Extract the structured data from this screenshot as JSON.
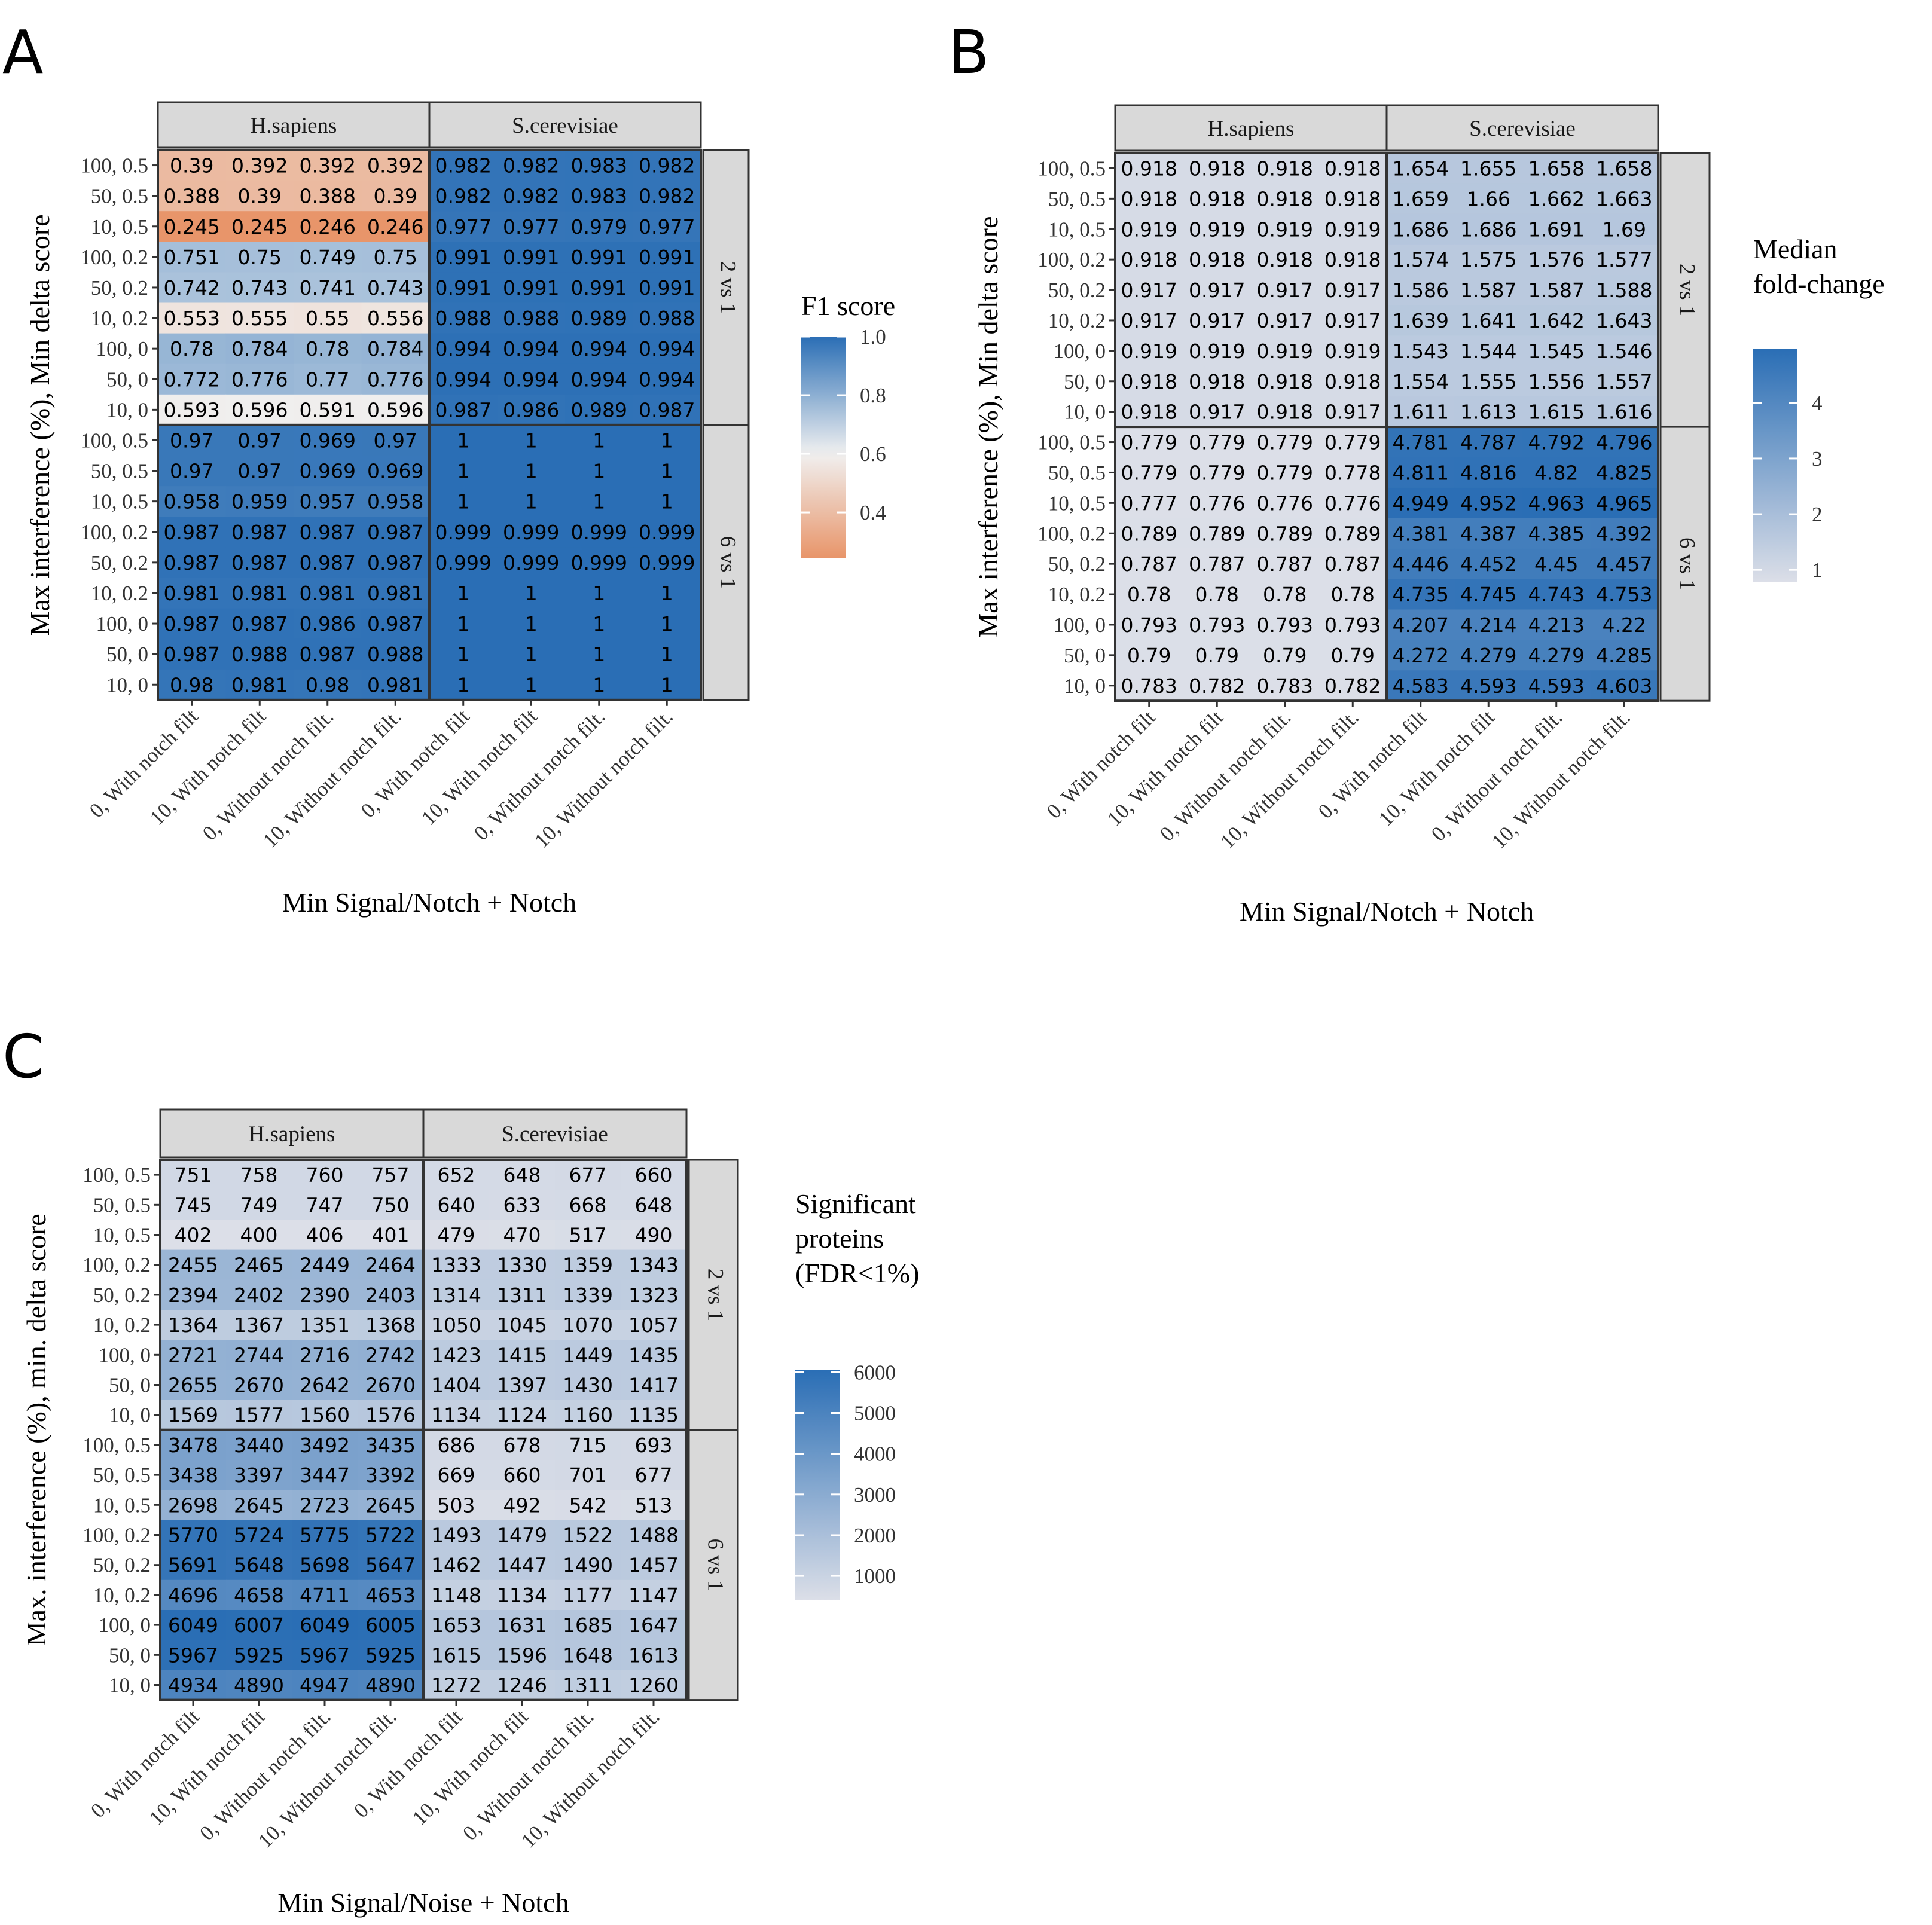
{
  "chart_data": [
    {
      "type": "heatmap",
      "panel_label": "A",
      "xlabel": "Min Signal/Notch + Notch",
      "ylabel": "Max interference (%), Min delta score",
      "columns": [
        "H.sapiens",
        "S.cerevisiae"
      ],
      "rows": [
        "2 vs 1",
        "6 vs 1"
      ],
      "x_categories": [
        "0, With notch filt",
        "10, With notch filt",
        "0, Without notch filt.",
        "10, Without notch filt."
      ],
      "y_categories": [
        "100, 0.5",
        "50, 0.5",
        "10, 0.5",
        "100, 0.2",
        "50, 0.2",
        "10, 0.2",
        "100, 0",
        "50, 0",
        "10, 0"
      ],
      "values": [
        [
          [
            [
              0.39,
              0.392,
              0.392,
              0.392
            ],
            [
              0.388,
              0.39,
              0.388,
              0.39
            ],
            [
              0.245,
              0.245,
              0.246,
              0.246
            ],
            [
              0.751,
              0.75,
              0.749,
              0.75
            ],
            [
              0.742,
              0.743,
              0.741,
              0.743
            ],
            [
              0.553,
              0.555,
              0.55,
              0.556
            ],
            [
              0.78,
              0.784,
              0.78,
              0.784
            ],
            [
              0.772,
              0.776,
              0.77,
              0.776
            ],
            [
              0.593,
              0.596,
              0.591,
              0.596
            ]
          ],
          [
            [
              0.982,
              0.982,
              0.983,
              0.982
            ],
            [
              0.982,
              0.982,
              0.983,
              0.982
            ],
            [
              0.977,
              0.977,
              0.979,
              0.977
            ],
            [
              0.991,
              0.991,
              0.991,
              0.991
            ],
            [
              0.991,
              0.991,
              0.991,
              0.991
            ],
            [
              0.988,
              0.988,
              0.989,
              0.988
            ],
            [
              0.994,
              0.994,
              0.994,
              0.994
            ],
            [
              0.994,
              0.994,
              0.994,
              0.994
            ],
            [
              0.987,
              0.986,
              0.989,
              0.987
            ]
          ]
        ],
        [
          [
            [
              0.97,
              0.97,
              0.969,
              0.97
            ],
            [
              0.97,
              0.97,
              0.969,
              0.969
            ],
            [
              0.958,
              0.959,
              0.957,
              0.958
            ],
            [
              0.987,
              0.987,
              0.987,
              0.987
            ],
            [
              0.987,
              0.987,
              0.987,
              0.987
            ],
            [
              0.981,
              0.981,
              0.981,
              0.981
            ],
            [
              0.987,
              0.987,
              0.986,
              0.987
            ],
            [
              0.987,
              0.988,
              0.987,
              0.988
            ],
            [
              0.98,
              0.981,
              0.98,
              0.981
            ]
          ],
          [
            [
              1,
              1,
              1,
              1
            ],
            [
              1,
              1,
              1,
              1
            ],
            [
              1,
              1,
              1,
              1
            ],
            [
              0.999,
              0.999,
              0.999,
              0.999
            ],
            [
              0.999,
              0.999,
              0.999,
              0.999
            ],
            [
              1,
              1,
              1,
              1
            ],
            [
              1,
              1,
              1,
              1
            ],
            [
              1,
              1,
              1,
              1
            ],
            [
              1,
              1,
              1,
              1
            ]
          ]
        ]
      ],
      "legend": {
        "title": [
          "F1 score"
        ],
        "scale": "diverging",
        "range": [
          0.245,
          1.0
        ],
        "midpoint": 0.6,
        "breaks": [
          0.4,
          0.6,
          0.8,
          1.0
        ],
        "break_labels": [
          "0.4",
          "0.6",
          "0.8",
          "1.0"
        ],
        "colors": {
          "low": "#e8956a",
          "mid": "#f0f0f0",
          "high": "#2a6eb5"
        }
      }
    },
    {
      "type": "heatmap",
      "panel_label": "B",
      "xlabel": "Min Signal/Notch + Notch",
      "ylabel": "Max interference (%), Min delta score",
      "columns": [
        "H.sapiens",
        "S.cerevisiae"
      ],
      "rows": [
        "2 vs 1",
        "6 vs 1"
      ],
      "x_categories": [
        "0, With notch filt",
        "10, With notch filt",
        "0, Without notch filt.",
        "10, Without notch filt."
      ],
      "y_categories": [
        "100, 0.5",
        "50, 0.5",
        "10, 0.5",
        "100, 0.2",
        "50, 0.2",
        "10, 0.2",
        "100, 0",
        "50, 0",
        "10, 0"
      ],
      "values": [
        [
          [
            [
              0.918,
              0.918,
              0.918,
              0.918
            ],
            [
              0.918,
              0.918,
              0.918,
              0.918
            ],
            [
              0.919,
              0.919,
              0.919,
              0.919
            ],
            [
              0.918,
              0.918,
              0.918,
              0.918
            ],
            [
              0.917,
              0.917,
              0.917,
              0.917
            ],
            [
              0.917,
              0.917,
              0.917,
              0.917
            ],
            [
              0.919,
              0.919,
              0.919,
              0.919
            ],
            [
              0.918,
              0.918,
              0.918,
              0.918
            ],
            [
              0.918,
              0.917,
              0.918,
              0.917
            ]
          ],
          [
            [
              1.654,
              1.655,
              1.658,
              1.658
            ],
            [
              1.659,
              1.66,
              1.662,
              1.663
            ],
            [
              1.686,
              1.686,
              1.691,
              1.69
            ],
            [
              1.574,
              1.575,
              1.576,
              1.577
            ],
            [
              1.586,
              1.587,
              1.587,
              1.588
            ],
            [
              1.639,
              1.641,
              1.642,
              1.643
            ],
            [
              1.543,
              1.544,
              1.545,
              1.546
            ],
            [
              1.554,
              1.555,
              1.556,
              1.557
            ],
            [
              1.611,
              1.613,
              1.615,
              1.616
            ]
          ]
        ],
        [
          [
            [
              0.779,
              0.779,
              0.779,
              0.779
            ],
            [
              0.779,
              0.779,
              0.779,
              0.778
            ],
            [
              0.777,
              0.776,
              0.776,
              0.776
            ],
            [
              0.789,
              0.789,
              0.789,
              0.789
            ],
            [
              0.787,
              0.787,
              0.787,
              0.787
            ],
            [
              0.78,
              0.78,
              0.78,
              0.78
            ],
            [
              0.793,
              0.793,
              0.793,
              0.793
            ],
            [
              0.79,
              0.79,
              0.79,
              0.79
            ],
            [
              0.783,
              0.782,
              0.783,
              0.782
            ]
          ],
          [
            [
              4.781,
              4.787,
              4.792,
              4.796
            ],
            [
              4.811,
              4.816,
              4.82,
              4.825
            ],
            [
              4.949,
              4.952,
              4.963,
              4.965
            ],
            [
              4.381,
              4.387,
              4.385,
              4.392
            ],
            [
              4.446,
              4.452,
              4.45,
              4.457
            ],
            [
              4.735,
              4.745,
              4.743,
              4.753
            ],
            [
              4.207,
              4.214,
              4.213,
              4.22
            ],
            [
              4.272,
              4.279,
              4.279,
              4.285
            ],
            [
              4.583,
              4.593,
              4.593,
              4.603
            ]
          ]
        ]
      ],
      "legend": {
        "title": [
          "Median",
          "fold-change"
        ],
        "scale": "sequential",
        "range": [
          0.776,
          4.965
        ],
        "breaks": [
          1,
          2,
          3,
          4
        ],
        "break_labels": [
          "1",
          "2",
          "3",
          "4"
        ],
        "colors": {
          "low": "#dcdfe8",
          "high": "#2a6eb5"
        }
      }
    },
    {
      "type": "heatmap",
      "panel_label": "C",
      "xlabel": "Min Signal/Noise + Notch",
      "ylabel": "Max. interference (%), min. delta score",
      "columns": [
        "H.sapiens",
        "S.cerevisiae"
      ],
      "rows": [
        "2 vs 1",
        "6 vs 1"
      ],
      "x_categories": [
        "0, With notch filt",
        "10, With notch filt",
        "0, Without notch filt.",
        "10, Without notch filt."
      ],
      "y_categories": [
        "100, 0.5",
        "50, 0.5",
        "10, 0.5",
        "100, 0.2",
        "50, 0.2",
        "10, 0.2",
        "100, 0",
        "50, 0",
        "10, 0"
      ],
      "values": [
        [
          [
            [
              751,
              758,
              760,
              757
            ],
            [
              745,
              749,
              747,
              750
            ],
            [
              402,
              400,
              406,
              401
            ],
            [
              2455,
              2465,
              2449,
              2464
            ],
            [
              2394,
              2402,
              2390,
              2403
            ],
            [
              1364,
              1367,
              1351,
              1368
            ],
            [
              2721,
              2744,
              2716,
              2742
            ],
            [
              2655,
              2670,
              2642,
              2670
            ],
            [
              1569,
              1577,
              1560,
              1576
            ]
          ],
          [
            [
              652,
              648,
              677,
              660
            ],
            [
              640,
              633,
              668,
              648
            ],
            [
              479,
              470,
              517,
              490
            ],
            [
              1333,
              1330,
              1359,
              1343
            ],
            [
              1314,
              1311,
              1339,
              1323
            ],
            [
              1050,
              1045,
              1070,
              1057
            ],
            [
              1423,
              1415,
              1449,
              1435
            ],
            [
              1404,
              1397,
              1430,
              1417
            ],
            [
              1134,
              1124,
              1160,
              1135
            ]
          ]
        ],
        [
          [
            [
              3478,
              3440,
              3492,
              3435
            ],
            [
              3438,
              3397,
              3447,
              3392
            ],
            [
              2698,
              2645,
              2723,
              2645
            ],
            [
              5770,
              5724,
              5775,
              5722
            ],
            [
              5691,
              5648,
              5698,
              5647
            ],
            [
              4696,
              4658,
              4711,
              4653
            ],
            [
              6049,
              6007,
              6049,
              6005
            ],
            [
              5967,
              5925,
              5967,
              5925
            ],
            [
              4934,
              4890,
              4947,
              4890
            ]
          ],
          [
            [
              686,
              678,
              715,
              693
            ],
            [
              669,
              660,
              701,
              677
            ],
            [
              503,
              492,
              542,
              513
            ],
            [
              1493,
              1479,
              1522,
              1488
            ],
            [
              1462,
              1447,
              1490,
              1457
            ],
            [
              1148,
              1134,
              1177,
              1147
            ],
            [
              1653,
              1631,
              1685,
              1647
            ],
            [
              1615,
              1596,
              1648,
              1613
            ],
            [
              1272,
              1246,
              1311,
              1260
            ]
          ]
        ]
      ],
      "legend": {
        "title": [
          "Significant",
          "proteins",
          "(FDR<1%)"
        ],
        "scale": "sequential",
        "range": [
          400,
          6049
        ],
        "breaks": [
          1000,
          2000,
          3000,
          4000,
          5000,
          6000
        ],
        "break_labels": [
          "1000",
          "2000",
          "3000",
          "4000",
          "5000",
          "6000"
        ],
        "colors": {
          "low": "#dcdfe8",
          "high": "#2a6eb5"
        }
      }
    }
  ]
}
